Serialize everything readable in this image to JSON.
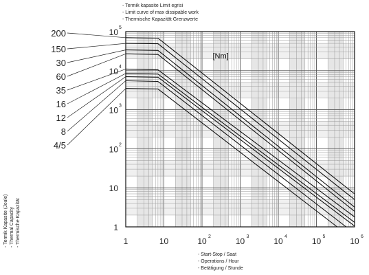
{
  "legend": [
    "- Termik kapasite Limit egrisi",
    "- Limit curve of max dissipable work",
    "- Thermische Kapazität Grenzwerte"
  ],
  "y_axis_labels": [
    "- Termik Kapasite (Joule)",
    "- Thermal Capacity",
    "- Thermische Kapazität"
  ],
  "x_axis_labels": [
    "- Start-Stop / Saat",
    "- Operations / Hour",
    "- Betätigung / Stunde"
  ],
  "chart_data": {
    "type": "line",
    "x_scale": "log",
    "y_scale": "log",
    "xlim": [
      1,
      1000000
    ],
    "ylim": [
      1,
      100000
    ],
    "x_ticks": [
      {
        "v": 1,
        "label": "1",
        "sup": ""
      },
      {
        "v": 10,
        "label": "10",
        "sup": ""
      },
      {
        "v": 100,
        "label": "10",
        "sup": "2"
      },
      {
        "v": 1000,
        "label": "10",
        "sup": "3"
      },
      {
        "v": 10000,
        "label": "10",
        "sup": "4"
      },
      {
        "v": 100000,
        "label": "10",
        "sup": "5"
      },
      {
        "v": 1000000,
        "label": "10",
        "sup": "6"
      }
    ],
    "y_ticks": [
      {
        "v": 1,
        "label": "1",
        "sup": ""
      },
      {
        "v": 10,
        "label": "10",
        "sup": ""
      },
      {
        "v": 100,
        "label": "10",
        "sup": "2"
      },
      {
        "v": 1000,
        "label": "10",
        "sup": "3"
      },
      {
        "v": 10000,
        "label": "10",
        "sup": "4"
      },
      {
        "v": 100000,
        "label": "10",
        "sup": "5"
      }
    ],
    "annotation": "[Nm]",
    "grid": true,
    "series": [
      {
        "name": "200",
        "points": [
          [
            1,
            70000
          ],
          [
            7,
            68000
          ],
          [
            1000000,
            7
          ]
        ]
      },
      {
        "name": "150",
        "points": [
          [
            1,
            50000
          ],
          [
            7,
            49000
          ],
          [
            1000000,
            5
          ]
        ]
      },
      {
        "name": "30",
        "points": [
          [
            1,
            34000
          ],
          [
            7,
            33000
          ],
          [
            1000000,
            3.2
          ]
        ]
      },
      {
        "name": "60",
        "points": [
          [
            1,
            27000
          ],
          [
            7,
            26000
          ],
          [
            1000000,
            2.5
          ]
        ]
      },
      {
        "name": "35",
        "points": [
          [
            1,
            11000
          ],
          [
            7,
            10500
          ],
          [
            1000000,
            1.8
          ]
        ]
      },
      {
        "name": "16",
        "points": [
          [
            1,
            8500
          ],
          [
            7,
            8200
          ],
          [
            1000000,
            1.3
          ]
        ]
      },
      {
        "name": "12",
        "points": [
          [
            1,
            7000
          ],
          [
            7,
            6800
          ],
          [
            1000000,
            1.05
          ]
        ]
      },
      {
        "name": "8",
        "points": [
          [
            1,
            5500
          ],
          [
            7,
            5300
          ],
          [
            600000,
            1
          ]
        ]
      },
      {
        "name": "4/5",
        "points": [
          [
            1,
            3500
          ],
          [
            7,
            3400
          ],
          [
            350000,
            1
          ]
        ]
      }
    ]
  }
}
